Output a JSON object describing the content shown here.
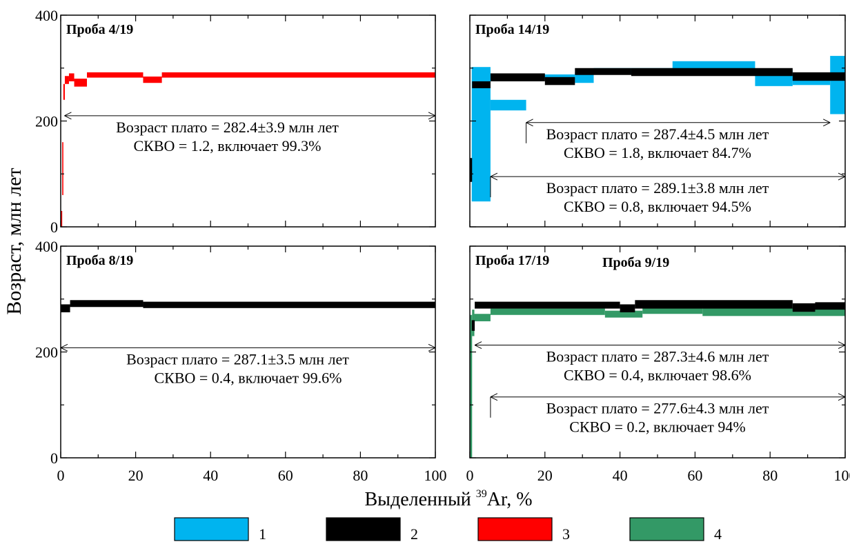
{
  "figure": {
    "ylabel": "Возраст, млн лет",
    "xlabel_prefix": "Выделенный ",
    "xlabel_sup": "39",
    "xlabel_suffix": "Ar, %"
  },
  "colors": {
    "1": "#00b4ef",
    "2": "#000000",
    "3": "#ff0000",
    "4": "#339966"
  },
  "legend": [
    {
      "key": "1",
      "label": "1"
    },
    {
      "key": "2",
      "label": "2"
    },
    {
      "key": "3",
      "label": "3"
    },
    {
      "key": "4",
      "label": "4"
    }
  ],
  "chart_data": [
    {
      "type": "step-spectrum",
      "title": "Проба 4/19",
      "xlim": [
        0,
        100
      ],
      "ylim": [
        0,
        400
      ],
      "xticks": [
        "0",
        "20",
        "40",
        "60",
        "80",
        "100"
      ],
      "yticks": [
        "0",
        "200",
        "400"
      ],
      "series": [
        {
          "color_key": "3",
          "steps": [
            [
              0,
              0.4,
              0,
              30
            ],
            [
              0.4,
              0.7,
              60,
              160
            ],
            [
              0.7,
              1.1,
              240,
              270
            ],
            [
              1.1,
              2.2,
              270,
              285
            ],
            [
              2.2,
              3.6,
              275,
              290
            ],
            [
              3.6,
              7.0,
              265,
              280
            ],
            [
              7.0,
              22,
              282,
              292
            ],
            [
              22,
              27,
              272,
              284
            ],
            [
              27,
              100,
              282,
              292
            ]
          ]
        }
      ],
      "plateaus": [
        {
          "x0": 1,
          "x1": 100,
          "age": 210,
          "text1": "Возраст плато = 282.4±3.9 млн лет",
          "text2": "СКВО = 1.2, включает 99.3%"
        }
      ]
    },
    {
      "type": "step-spectrum",
      "title": "Проба 14/19",
      "xlim": [
        0,
        100
      ],
      "ylim": [
        0,
        400
      ],
      "xticks": [
        "0",
        "20",
        "40",
        "60",
        "80",
        "100"
      ],
      "yticks": [],
      "series": [
        {
          "color_key": "1",
          "steps": [
            [
              0.5,
              5.5,
              48,
              302
            ],
            [
              5.5,
              15,
              220,
              240
            ],
            [
              15,
              28,
              278,
              288
            ],
            [
              28,
              33,
              272,
              292
            ],
            [
              33,
              54,
              288,
              300
            ],
            [
              54,
              76,
              295,
              313
            ],
            [
              76,
              86,
              266,
              296
            ],
            [
              86,
              96,
              268,
              290
            ],
            [
              96,
              100,
              213,
              323
            ]
          ]
        },
        {
          "color_key": "2",
          "steps": [
            [
              0,
              0.6,
              85,
              130
            ],
            [
              0.6,
              5.5,
              262,
              275
            ],
            [
              5.5,
              20,
              275,
              290
            ],
            [
              20,
              28,
              268,
              283
            ],
            [
              28,
              43,
              287,
              300
            ],
            [
              43,
              86,
              285,
              300
            ],
            [
              86,
              100,
              276,
              292
            ]
          ]
        }
      ],
      "plateaus": [
        {
          "x0": 15,
          "x1": 96,
          "age": 197,
          "text1": "Возраст плато = 287.4±4.5 млн лет",
          "text2": "СКВО = 1.8, включает 84.7%"
        },
        {
          "x0": 5.5,
          "x1": 100,
          "age": 95,
          "text1": "Возраст плато = 289.1±3.8 млн лет",
          "text2": "СКВО = 0.8, включает 94.5%"
        }
      ]
    },
    {
      "type": "step-spectrum",
      "title": "Проба 8/19",
      "xlim": [
        0,
        100
      ],
      "ylim": [
        0,
        400
      ],
      "xticks": [
        "0",
        "20",
        "40",
        "60",
        "80",
        "100"
      ],
      "yticks": [
        "0",
        "200",
        "400"
      ],
      "series": [
        {
          "color_key": "2",
          "steps": [
            [
              0,
              2.5,
              275,
              290
            ],
            [
              2.5,
              22,
              285,
              298
            ],
            [
              22,
              100,
              283,
              295
            ]
          ]
        }
      ],
      "plateaus": [
        {
          "x0": 0,
          "x1": 100,
          "age": 208,
          "text1": "Возраст плато = 287.1±3.5 млн лет",
          "text2": "СКВО = 0.4, включает 99.6%"
        }
      ]
    },
    {
      "type": "step-spectrum",
      "title": "Проба 9/19",
      "title2": "Проба 17/19",
      "title2_color_key": "4",
      "xlim": [
        0,
        100
      ],
      "ylim": [
        0,
        400
      ],
      "xticks": [
        "0",
        "20",
        "40",
        "60",
        "80",
        "100"
      ],
      "yticks": [],
      "series": [
        {
          "color_key": "4",
          "steps": [
            [
              0,
              0.6,
              0,
              270
            ],
            [
              0.6,
              1.2,
              230,
              280
            ],
            [
              1.2,
              5.5,
              258,
              272
            ],
            [
              5.5,
              36,
              270,
              282
            ],
            [
              36,
              46,
              265,
              278
            ],
            [
              46,
              62,
              272,
              284
            ],
            [
              62,
              100,
              268,
              283
            ]
          ]
        },
        {
          "color_key": "2",
          "steps": [
            [
              0.5,
              1.3,
              240,
              260
            ],
            [
              1.3,
              40,
              282,
              295
            ],
            [
              40,
              44,
              275,
              290
            ],
            [
              44,
              86,
              282,
              298
            ],
            [
              86,
              92,
              276,
              292
            ],
            [
              92,
              100,
              280,
              294
            ]
          ]
        }
      ],
      "plateaus": [
        {
          "x0": 1.3,
          "x1": 100,
          "age": 213,
          "text1": "Возраст плато = 287.3±4.6 млн лет",
          "text2": "СКВО = 0.4, включает 98.6%"
        },
        {
          "x0": 5.5,
          "x1": 100,
          "age": 115,
          "text1": "Возраст плато = 277.6±4.3 млн лет",
          "text2": "СКВО = 0.2, включает 94%"
        }
      ]
    }
  ]
}
